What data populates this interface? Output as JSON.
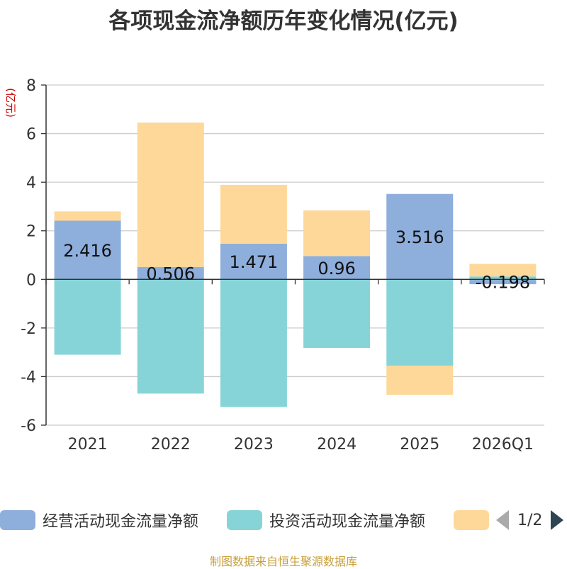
{
  "title": "各项现金流净额历年变化情况(亿元)",
  "source_note": "制图数据来自恒生聚源数据库",
  "chart_data": {
    "type": "bar",
    "stacked": true,
    "categories": [
      "2021",
      "2022",
      "2023",
      "2024",
      "2025",
      "2026Q1"
    ],
    "ylabel": "(亿元)",
    "ylim": [
      -6,
      8
    ],
    "yticks": [
      -6,
      -4,
      -2,
      0,
      2,
      4,
      6,
      8
    ],
    "grid": true,
    "series": [
      {
        "name": "经营活动现金流量净额",
        "color": "#8eaedc",
        "values": [
          2.416,
          0.506,
          1.471,
          0.96,
          3.516,
          -0.198
        ],
        "labels": [
          "2.416",
          "0.506",
          "1.471",
          "0.96",
          "3.516",
          "-0.198"
        ]
      },
      {
        "name": "投资活动现金流量净额",
        "color": "#87d4d8",
        "values": [
          -3.1,
          -4.7,
          -5.25,
          -2.82,
          -3.55,
          0.12
        ]
      },
      {
        "name": "",
        "color": "#fdd899",
        "values": [
          0.38,
          5.95,
          2.42,
          1.88,
          -1.2,
          0.52
        ]
      }
    ]
  },
  "legend": {
    "page_text": "1/2"
  }
}
